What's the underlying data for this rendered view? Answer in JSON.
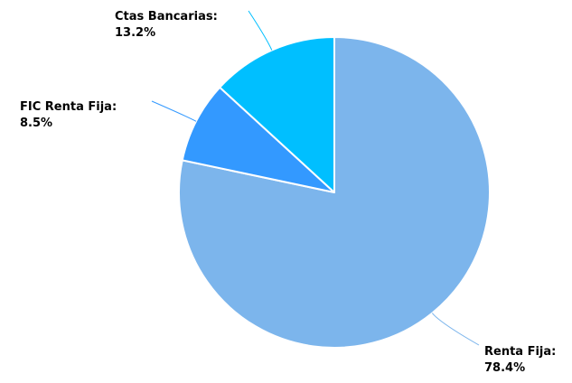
{
  "chart_data": {
    "type": "pie",
    "title": "",
    "slices": [
      {
        "name": "Renta Fija",
        "value": 78.4,
        "label_name": "Renta Fija:",
        "label_value": "78.4%",
        "color": "#7cb5ec"
      },
      {
        "name": "FIC Renta Fija",
        "value": 8.5,
        "label_name": "FIC Renta Fija:",
        "label_value": "8.5%",
        "color": "#3399ff"
      },
      {
        "name": "Ctas Bancarias",
        "value": 13.2,
        "label_name": "Ctas Bancarias:",
        "label_value": "13.2%",
        "color": "#00bfff"
      }
    ],
    "legend": "none"
  }
}
